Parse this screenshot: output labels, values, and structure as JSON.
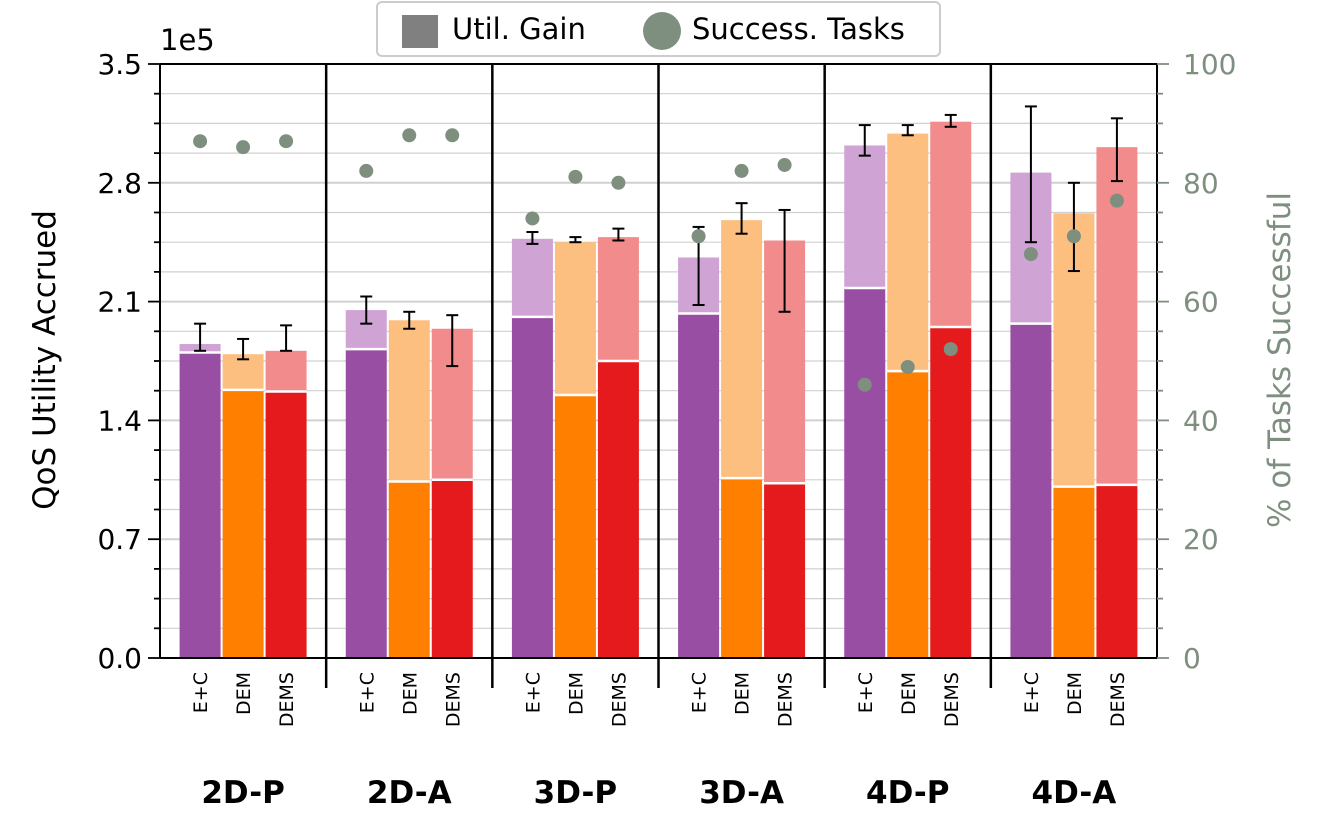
{
  "chart_data": {
    "type": "bar",
    "stacked_bars": true,
    "group_labels": [
      "2D-P",
      "2D-A",
      "3D-P",
      "3D-A",
      "4D-P",
      "4D-A"
    ],
    "method_labels": [
      "E+C",
      "DEM",
      "DEMS"
    ],
    "method_colors": {
      "E+C": {
        "base": "#984ea3",
        "gain": "#cfa3d4"
      },
      "DEM": {
        "base": "#ff7f00",
        "gain": "#fdbf7f"
      },
      "DEMS": {
        "base": "#e41a1c",
        "gain": "#f28c8c"
      }
    },
    "y_left": {
      "label": "QoS Utility Accrued",
      "multiplier": "1e5",
      "ticks": [
        "0.0",
        "0.7",
        "1.4",
        "2.1",
        "2.8",
        "3.5"
      ],
      "ylim": [
        0,
        3.5
      ]
    },
    "y_right": {
      "label": "% of Tasks Successful",
      "ticks": [
        "0",
        "20",
        "40",
        "60",
        "80",
        "100"
      ],
      "ylim": [
        0,
        100
      ],
      "color": "#7f8f7f"
    },
    "legend": [
      {
        "label": "Util. Gain",
        "marker": "square"
      },
      {
        "label": "Success. Tasks",
        "marker": "circle"
      }
    ],
    "series": [
      {
        "group": "2D-P",
        "method": "E+C",
        "base": 1.8,
        "total": 1.85,
        "err_low": 1.81,
        "err_high": 1.97,
        "success": 87
      },
      {
        "group": "2D-P",
        "method": "DEM",
        "base": 1.58,
        "total": 1.79,
        "err_low": 1.76,
        "err_high": 1.88,
        "success": 86
      },
      {
        "group": "2D-P",
        "method": "DEMS",
        "base": 1.57,
        "total": 1.81,
        "err_low": 1.81,
        "err_high": 1.96,
        "success": 87
      },
      {
        "group": "2D-A",
        "method": "E+C",
        "base": 1.82,
        "total": 2.05,
        "err_low": 1.97,
        "err_high": 2.13,
        "success": 82
      },
      {
        "group": "2D-A",
        "method": "DEM",
        "base": 1.04,
        "total": 1.99,
        "err_low": 1.94,
        "err_high": 2.04,
        "success": 88
      },
      {
        "group": "2D-A",
        "method": "DEMS",
        "base": 1.05,
        "total": 1.94,
        "err_low": 1.72,
        "err_high": 2.02,
        "success": 88
      },
      {
        "group": "3D-P",
        "method": "E+C",
        "base": 2.01,
        "total": 2.47,
        "err_low": 2.44,
        "err_high": 2.51,
        "success": 74
      },
      {
        "group": "3D-P",
        "method": "DEM",
        "base": 1.55,
        "total": 2.45,
        "err_low": 2.45,
        "err_high": 2.48,
        "success": 81
      },
      {
        "group": "3D-P",
        "method": "DEMS",
        "base": 1.75,
        "total": 2.48,
        "err_low": 2.46,
        "err_high": 2.53,
        "success": 80
      },
      {
        "group": "3D-A",
        "method": "E+C",
        "base": 2.03,
        "total": 2.36,
        "err_low": 2.08,
        "err_high": 2.54,
        "success": 71
      },
      {
        "group": "3D-A",
        "method": "DEM",
        "base": 1.06,
        "total": 2.58,
        "err_low": 2.5,
        "err_high": 2.68,
        "success": 82
      },
      {
        "group": "3D-A",
        "method": "DEMS",
        "base": 1.03,
        "total": 2.46,
        "err_low": 2.04,
        "err_high": 2.64,
        "success": 83
      },
      {
        "group": "4D-P",
        "method": "E+C",
        "base": 2.18,
        "total": 3.02,
        "err_low": 2.96,
        "err_high": 3.14,
        "success": 46
      },
      {
        "group": "4D-P",
        "method": "DEM",
        "base": 1.69,
        "total": 3.09,
        "err_low": 3.08,
        "err_high": 3.14,
        "success": 49
      },
      {
        "group": "4D-P",
        "method": "DEMS",
        "base": 1.95,
        "total": 3.16,
        "err_low": 3.13,
        "err_high": 3.2,
        "success": 52
      },
      {
        "group": "4D-A",
        "method": "E+C",
        "base": 1.97,
        "total": 2.86,
        "err_low": 2.45,
        "err_high": 3.25,
        "success": 68
      },
      {
        "group": "4D-A",
        "method": "DEM",
        "base": 1.01,
        "total": 2.62,
        "err_low": 2.28,
        "err_high": 2.8,
        "success": 71
      },
      {
        "group": "4D-A",
        "method": "DEMS",
        "base": 1.02,
        "total": 3.01,
        "err_low": 2.81,
        "err_high": 3.18,
        "success": 77
      }
    ]
  }
}
